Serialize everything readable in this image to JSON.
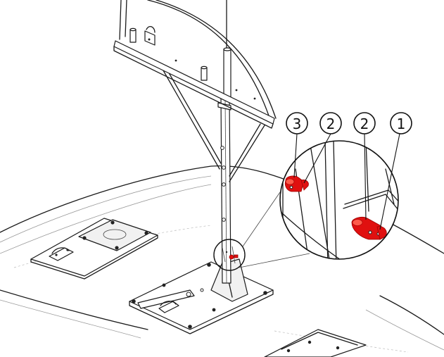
{
  "callouts": [
    {
      "label": "3"
    },
    {
      "label": "2"
    },
    {
      "label": "2"
    },
    {
      "label": "1"
    }
  ],
  "colors": {
    "highlight_part": "#e01010",
    "line": "#1a1a1a",
    "background": "#ffffff"
  },
  "icons": [
    "assembly-drawing",
    "detail-magnifier"
  ]
}
